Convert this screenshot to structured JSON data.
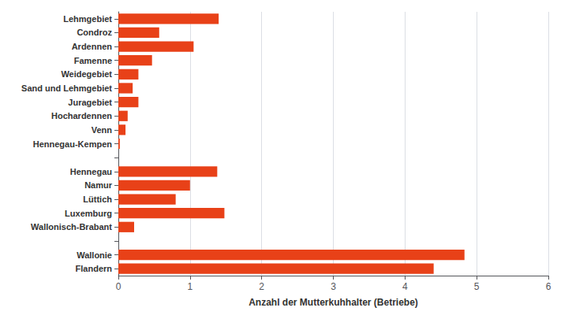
{
  "chart_data": {
    "type": "bar",
    "orientation": "horizontal",
    "categories": [
      "Lehmgebiet",
      "Condroz",
      "Ardennen",
      "Famenne",
      "Weidegebiet",
      "Sand und Lehmgebiet",
      "Juragebiet",
      "Hochardennen",
      "Venn",
      "Hennegau-Kempen",
      null,
      "Hennegau",
      "Namur",
      "Lüttich",
      "Luxemburg",
      "Wallonisch-Brabant",
      null,
      "Wallonie",
      "Flandern"
    ],
    "values": [
      1.4,
      0.57,
      1.05,
      0.47,
      0.28,
      0.2,
      0.28,
      0.13,
      0.1,
      0.02,
      0,
      1.38,
      1.0,
      0.8,
      1.48,
      0.22,
      0,
      4.83,
      4.4
    ],
    "color": "#e84118",
    "xlabel": "Anzahl der Mutterkuhhalter (Betriebe)",
    "xlim": [
      0,
      6
    ],
    "xticks": [
      0,
      1,
      2,
      3,
      4,
      5,
      6
    ],
    "grid": true
  }
}
